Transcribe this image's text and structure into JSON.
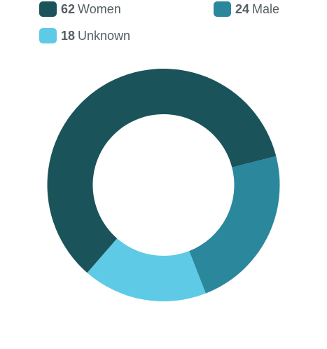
{
  "chart_data": {
    "type": "pie",
    "variant": "donut",
    "legend_position": "top",
    "categories": [
      "Women",
      "Male",
      "Unknown"
    ],
    "values": [
      62,
      24,
      18
    ],
    "colors": [
      "#1b535a",
      "#2b879c",
      "#5ecae6"
    ],
    "legend": [
      {
        "count": "62",
        "label": "Women",
        "color": "#1b535a"
      },
      {
        "count": "24",
        "label": "Male",
        "color": "#2b879c"
      },
      {
        "count": "18",
        "label": "Unknown",
        "color": "#5ecae6"
      }
    ]
  }
}
